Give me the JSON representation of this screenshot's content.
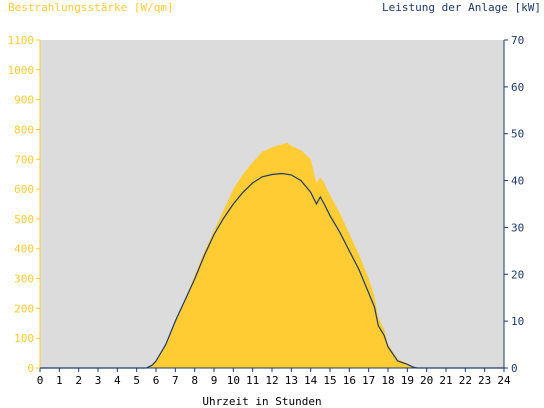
{
  "chart_data": {
    "type": "area",
    "title": "",
    "y_left_label": "Bestrahlungsstärke [W/qm]",
    "y_right_label": "Leistung der Anlage [kW]",
    "xlabel": "Uhrzeit in Stunden",
    "xlim": [
      0,
      24
    ],
    "ylim_left": [
      0,
      1100
    ],
    "ylim_right": [
      0,
      70
    ],
    "x_ticks": [
      "0",
      "1",
      "2",
      "3",
      "4",
      "5",
      "6",
      "7",
      "8",
      "9",
      "10",
      "11",
      "12",
      "13",
      "14",
      "15",
      "16",
      "17",
      "18",
      "19",
      "20",
      "21",
      "22",
      "23",
      "24"
    ],
    "y_left_ticks": [
      "0",
      "100",
      "200",
      "300",
      "400",
      "500",
      "600",
      "700",
      "800",
      "900",
      "1000",
      "1100"
    ],
    "y_right_ticks": [
      "0",
      "10",
      "20",
      "30",
      "40",
      "50",
      "60",
      "70"
    ],
    "grid": false,
    "colors": {
      "plot_background": "#dcdcdc",
      "irradiance_fill": "#ffcc33",
      "left_axis": "#ffcc33",
      "right_axis": "#1e3a6e",
      "power_line": "#1e3a6e"
    },
    "series": [
      {
        "name": "Bestrahlungsstärke [W/qm]",
        "axis": "left",
        "style": "area",
        "x": [
          0,
          5.5,
          5.8,
          6.0,
          6.5,
          7.0,
          7.5,
          8.0,
          8.5,
          9.0,
          9.5,
          10.0,
          10.5,
          11.0,
          11.5,
          12.0,
          12.5,
          12.8,
          13.0,
          13.5,
          14.0,
          14.3,
          14.5,
          14.7,
          15.0,
          15.5,
          16.0,
          16.5,
          17.0,
          17.3,
          17.5,
          17.8,
          18.0,
          18.5,
          19.0,
          19.3,
          19.5,
          24
        ],
        "y": [
          0,
          0,
          10,
          25,
          80,
          160,
          230,
          310,
          390,
          460,
          530,
          600,
          650,
          690,
          725,
          740,
          750,
          755,
          745,
          730,
          700,
          620,
          640,
          620,
          580,
          520,
          450,
          380,
          300,
          240,
          170,
          130,
          80,
          30,
          15,
          5,
          0,
          0
        ]
      },
      {
        "name": "Leistung der Anlage [kW]",
        "axis": "right",
        "style": "line",
        "x": [
          0,
          5.5,
          5.8,
          6.0,
          6.5,
          7.0,
          7.5,
          8.0,
          8.5,
          9.0,
          9.5,
          10.0,
          10.5,
          11.0,
          11.5,
          12.0,
          12.5,
          13.0,
          13.5,
          14.0,
          14.3,
          14.5,
          14.7,
          15.0,
          15.5,
          16.0,
          16.5,
          17.0,
          17.3,
          17.5,
          17.8,
          18.0,
          18.5,
          19.0,
          19.3,
          19.5,
          24
        ],
        "y": [
          0,
          0,
          0.6,
          1.5,
          5,
          10,
          14.5,
          19,
          24,
          28.5,
          32,
          35,
          37.5,
          39.5,
          40.8,
          41.3,
          41.5,
          41.2,
          40,
          37.5,
          35,
          36.5,
          35,
          32.5,
          29,
          25,
          21,
          16,
          13,
          9,
          7,
          4.5,
          1.5,
          0.8,
          0.2,
          0,
          0
        ]
      }
    ]
  }
}
